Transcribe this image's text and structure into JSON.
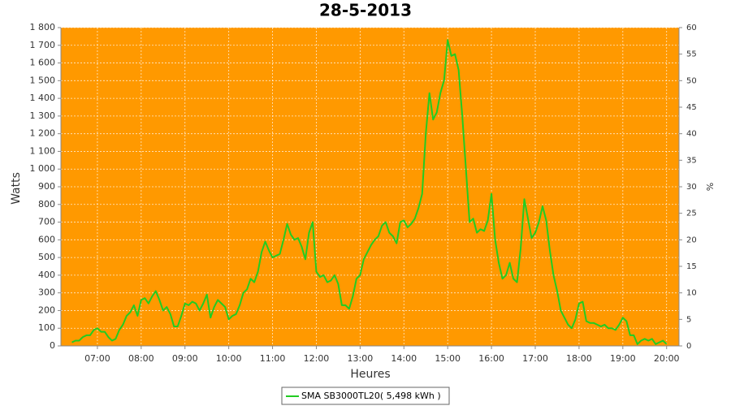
{
  "chart_data": {
    "type": "line",
    "title": "28-5-2013",
    "xlabel": "Heures",
    "ylabel": "Watts",
    "y2label": "%",
    "background": "#ff9900",
    "grid": true,
    "xlim": [
      "06:10",
      "20:17"
    ],
    "xticks": [
      "07:00",
      "08:00",
      "09:00",
      "10:00",
      "11:00",
      "12:00",
      "13:00",
      "14:00",
      "15:00",
      "16:00",
      "17:00",
      "18:00",
      "19:00",
      "20:00"
    ],
    "ylim": [
      0,
      1800
    ],
    "yticks": [
      0,
      100,
      200,
      300,
      400,
      500,
      600,
      700,
      800,
      900,
      {
        "value": 1000,
        "label": "1 000"
      },
      {
        "value": 1100,
        "label": "1 100"
      },
      {
        "value": 1200,
        "label": "1 200"
      },
      {
        "value": 1300,
        "label": "1 300"
      },
      {
        "value": 1400,
        "label": "1 400"
      },
      {
        "value": 1500,
        "label": "1 500"
      },
      {
        "value": 1600,
        "label": "1 600"
      },
      {
        "value": 1700,
        "label": "1 700"
      },
      {
        "value": 1800,
        "label": "1 800"
      }
    ],
    "y2lim": [
      0,
      60
    ],
    "y2ticks": [
      0,
      5,
      10,
      15,
      20,
      25,
      30,
      35,
      40,
      45,
      50,
      55,
      60
    ],
    "x": [
      "06:25",
      "06:30",
      "06:35",
      "06:40",
      "06:45",
      "06:50",
      "06:55",
      "07:00",
      "07:05",
      "07:10",
      "07:15",
      "07:20",
      "07:25",
      "07:30",
      "07:35",
      "07:40",
      "07:45",
      "07:50",
      "07:55",
      "08:00",
      "08:05",
      "08:10",
      "08:15",
      "08:20",
      "08:25",
      "08:30",
      "08:35",
      "08:40",
      "08:45",
      "08:50",
      "08:55",
      "09:00",
      "09:05",
      "09:10",
      "09:15",
      "09:20",
      "09:25",
      "09:30",
      "09:35",
      "09:40",
      "09:45",
      "09:50",
      "09:55",
      "10:00",
      "10:05",
      "10:10",
      "10:15",
      "10:20",
      "10:25",
      "10:30",
      "10:35",
      "10:40",
      "10:45",
      "10:50",
      "10:55",
      "11:00",
      "11:05",
      "11:10",
      "11:15",
      "11:20",
      "11:25",
      "11:30",
      "11:35",
      "11:40",
      "11:45",
      "11:50",
      "11:55",
      "12:00",
      "12:05",
      "12:10",
      "12:15",
      "12:20",
      "12:25",
      "12:30",
      "12:35",
      "12:40",
      "12:45",
      "12:50",
      "12:55",
      "13:00",
      "13:05",
      "13:10",
      "13:15",
      "13:20",
      "13:25",
      "13:30",
      "13:35",
      "13:40",
      "13:45",
      "13:50",
      "13:55",
      "14:00",
      "14:05",
      "14:10",
      "14:15",
      "14:20",
      "14:25",
      "14:30",
      "14:35",
      "14:40",
      "14:45",
      "14:50",
      "14:55",
      "15:00",
      "15:05",
      "15:10",
      "15:15",
      "15:20",
      "15:25",
      "15:30",
      "15:35",
      "15:40",
      "15:45",
      "15:50",
      "15:55",
      "16:00",
      "16:05",
      "16:10",
      "16:15",
      "16:20",
      "16:25",
      "16:30",
      "16:35",
      "16:40",
      "16:45",
      "16:50",
      "16:55",
      "17:00",
      "17:05",
      "17:10",
      "17:15",
      "17:20",
      "17:25",
      "17:30",
      "17:35",
      "17:40",
      "17:45",
      "17:50",
      "17:55",
      "18:00",
      "18:05",
      "18:10",
      "18:15",
      "18:20",
      "18:25",
      "18:30",
      "18:35",
      "18:40",
      "18:45",
      "18:50",
      "18:55",
      "19:00",
      "19:05",
      "19:10",
      "19:15",
      "19:20",
      "19:25",
      "19:30",
      "19:35",
      "19:40",
      "19:45",
      "19:50",
      "19:55",
      "20:00"
    ],
    "series": [
      {
        "name": "SMA SB3000TL20( 5,498 kWh )",
        "color": "#22cc22",
        "values": [
          20,
          30,
          30,
          50,
          60,
          60,
          90,
          100,
          80,
          80,
          50,
          30,
          40,
          90,
          120,
          170,
          190,
          230,
          170,
          260,
          270,
          240,
          280,
          310,
          260,
          200,
          220,
          180,
          110,
          110,
          170,
          240,
          230,
          250,
          240,
          200,
          240,
          290,
          160,
          220,
          260,
          240,
          220,
          150,
          170,
          180,
          230,
          300,
          320,
          380,
          360,
          420,
          530,
          590,
          540,
          500,
          510,
          520,
          600,
          690,
          630,
          600,
          610,
          560,
          490,
          640,
          700,
          420,
          390,
          400,
          360,
          370,
          400,
          350,
          230,
          230,
          210,
          280,
          380,
          400,
          490,
          530,
          570,
          600,
          620,
          680,
          700,
          640,
          620,
          580,
          700,
          710,
          670,
          690,
          720,
          780,
          860,
          1200,
          1430,
          1280,
          1320,
          1430,
          1500,
          1730,
          1640,
          1650,
          1560,
          1300,
          1000,
          700,
          720,
          640,
          660,
          650,
          710,
          860,
          600,
          470,
          380,
          400,
          470,
          380,
          360,
          550,
          830,
          720,
          610,
          640,
          700,
          790,
          710,
          540,
          400,
          310,
          200,
          160,
          120,
          100,
          150,
          240,
          250,
          140,
          130,
          130,
          120,
          110,
          120,
          100,
          100,
          90,
          120,
          160,
          140,
          60,
          60,
          10,
          30,
          40,
          30,
          40,
          10,
          20,
          30,
          10
        ]
      }
    ]
  }
}
